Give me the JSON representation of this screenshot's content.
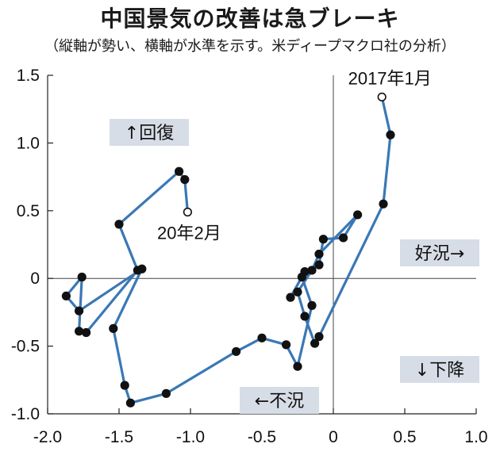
{
  "chart_data": {
    "type": "scatter",
    "title": "中国景気の改善は急ブレーキ",
    "subtitle": "（縦軸が勢い、横軸が水準を示す。米ディープマクロ社の分析）",
    "xlim": [
      -2.0,
      1.0
    ],
    "ylim": [
      -1.0,
      1.5
    ],
    "x_ticks": [
      "-2.0",
      "-1.5",
      "-1.0",
      "-0.5",
      "0",
      "0.5",
      "1.0"
    ],
    "y_ticks": [
      "1.5",
      "1.0",
      "0.5",
      "0",
      "-0.5",
      "-1.0"
    ],
    "grid": false,
    "start_label": "2017年1月",
    "end_label": "20年2月",
    "quadrants": {
      "up": "↑回復",
      "right": "好況→",
      "down": "↓下降",
      "left": "←不況"
    },
    "series": [
      {
        "color": "#3a78b5",
        "points": [
          [
            0.34,
            1.34
          ],
          [
            0.4,
            1.06
          ],
          [
            0.35,
            0.55
          ],
          [
            -0.1,
            -0.43
          ],
          [
            -0.13,
            -0.48
          ],
          [
            -0.2,
            -0.28
          ],
          [
            -0.25,
            -0.1
          ],
          [
            -0.15,
            0.06
          ],
          [
            -0.1,
            0.18
          ],
          [
            0.17,
            0.47
          ],
          [
            0.07,
            0.3
          ],
          [
            -0.07,
            0.29
          ],
          [
            -0.1,
            0.1
          ],
          [
            -0.2,
            0.05
          ],
          [
            -0.3,
            -0.14
          ],
          [
            -0.22,
            0.01
          ],
          [
            -0.15,
            -0.2
          ],
          [
            -0.25,
            -0.65
          ],
          [
            -0.33,
            -0.49
          ],
          [
            -0.5,
            -0.44
          ],
          [
            -0.68,
            -0.54
          ],
          [
            -1.17,
            -0.85
          ],
          [
            -1.42,
            -0.92
          ],
          [
            -1.46,
            -0.79
          ],
          [
            -1.54,
            -0.37
          ],
          [
            -1.34,
            0.07
          ],
          [
            -1.78,
            -0.24
          ],
          [
            -1.87,
            -0.13
          ],
          [
            -1.76,
            0.01
          ],
          [
            -1.78,
            -0.39
          ],
          [
            -1.73,
            -0.4
          ],
          [
            -1.37,
            0.06
          ],
          [
            -1.5,
            0.4
          ],
          [
            -1.08,
            0.79
          ],
          [
            -1.04,
            0.73
          ],
          [
            -1.02,
            0.49
          ]
        ]
      }
    ]
  }
}
